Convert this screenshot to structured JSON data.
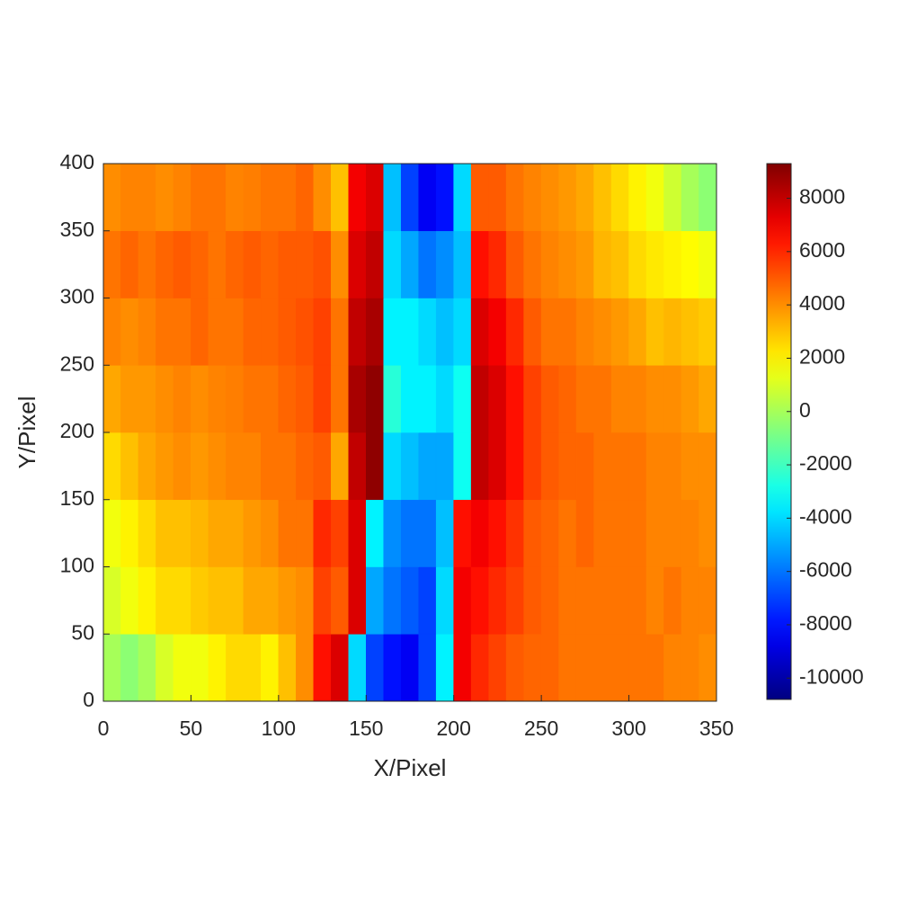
{
  "chart_data": {
    "type": "heatmap",
    "xlabel": "X/Pixel",
    "ylabel": "Y/Pixel",
    "xlim": [
      0,
      350
    ],
    "ylim": [
      0,
      400
    ],
    "xticks": [
      0,
      50,
      100,
      150,
      200,
      250,
      300,
      350
    ],
    "yticks": [
      0,
      50,
      100,
      150,
      200,
      250,
      300,
      350,
      400
    ],
    "colormap": "jet",
    "clim": [
      -10800,
      9300
    ],
    "colorbar_ticks": [
      -10000,
      -8000,
      -6000,
      -4000,
      -2000,
      0,
      2000,
      4000,
      6000,
      8000
    ],
    "x": [
      5,
      15,
      25,
      35,
      45,
      55,
      65,
      75,
      85,
      95,
      105,
      115,
      125,
      135,
      145,
      155,
      165,
      175,
      185,
      195,
      205,
      215,
      225,
      235,
      245,
      255,
      265,
      275,
      285,
      295,
      305,
      315,
      325,
      335,
      345
    ],
    "y": [
      25,
      75,
      125,
      175,
      225,
      275,
      325,
      375
    ],
    "z": [
      [
        0,
        -500,
        0,
        1000,
        1500,
        1500,
        2000,
        2500,
        2500,
        2000,
        3000,
        4000,
        6500,
        7500,
        -4000,
        -7000,
        -8000,
        -8500,
        -7000,
        -3500,
        7000,
        6000,
        5500,
        5000,
        4800,
        4800,
        4500,
        4500,
        4500,
        4500,
        4500,
        4500,
        4200,
        4200,
        4000
      ],
      [
        1000,
        1500,
        2000,
        2500,
        2500,
        2800,
        3000,
        3000,
        3500,
        3500,
        3800,
        4000,
        5500,
        5000,
        7500,
        -5000,
        -6000,
        -6500,
        -7000,
        -4000,
        7000,
        6500,
        6000,
        5500,
        5000,
        4800,
        4500,
        4500,
        4500,
        4500,
        4500,
        4200,
        4500,
        4200,
        4200
      ],
      [
        1500,
        2000,
        2500,
        3000,
        3000,
        3200,
        3500,
        3500,
        3800,
        4000,
        4500,
        4500,
        6000,
        5500,
        7500,
        -3500,
        -5500,
        -6000,
        -6000,
        -4500,
        6500,
        7000,
        6500,
        5800,
        5000,
        4800,
        4500,
        4800,
        4500,
        4500,
        4500,
        4200,
        4200,
        4200,
        4000
      ],
      [
        2500,
        3000,
        3500,
        3800,
        4000,
        3800,
        4000,
        4200,
        4200,
        4500,
        4500,
        4800,
        5000,
        3500,
        8000,
        9000,
        -4000,
        -4500,
        -5000,
        -5000,
        -3000,
        8000,
        7500,
        6500,
        5500,
        5000,
        4800,
        4800,
        4500,
        4500,
        4500,
        4200,
        4200,
        4000,
        4000
      ],
      [
        3500,
        3800,
        3800,
        4000,
        4200,
        4000,
        4200,
        4300,
        4500,
        4500,
        4800,
        5000,
        5500,
        4500,
        8500,
        9000,
        -2500,
        -3500,
        -3500,
        -4000,
        -3000,
        8000,
        7500,
        6500,
        5500,
        5000,
        4800,
        4500,
        4500,
        4200,
        4200,
        4000,
        4000,
        3800,
        3500
      ],
      [
        4200,
        4000,
        4200,
        4500,
        4500,
        4800,
        4500,
        4500,
        4800,
        4800,
        5000,
        5200,
        5500,
        4500,
        8000,
        8500,
        -3500,
        -3500,
        -4000,
        -4500,
        -4000,
        7500,
        7000,
        6000,
        5000,
        4500,
        4500,
        4200,
        4000,
        3800,
        3500,
        3000,
        3200,
        3000,
        2800
      ],
      [
        4500,
        4800,
        4500,
        4800,
        5000,
        4800,
        4500,
        4800,
        5000,
        4800,
        5000,
        5000,
        5200,
        4000,
        7500,
        8000,
        -4000,
        -5000,
        -6000,
        -5500,
        -4500,
        6500,
        6000,
        5000,
        4500,
        4200,
        4000,
        3800,
        3200,
        3000,
        2500,
        2200,
        2000,
        1800,
        1500
      ],
      [
        4000,
        4200,
        4200,
        4000,
        4200,
        4500,
        4500,
        4200,
        4300,
        4500,
        4500,
        4800,
        4000,
        3000,
        7000,
        7500,
        -4500,
        -7000,
        -8500,
        -8000,
        -4000,
        5000,
        5000,
        4500,
        4200,
        4000,
        3800,
        3500,
        3000,
        2500,
        2000,
        1500,
        800,
        0,
        -500
      ]
    ]
  }
}
